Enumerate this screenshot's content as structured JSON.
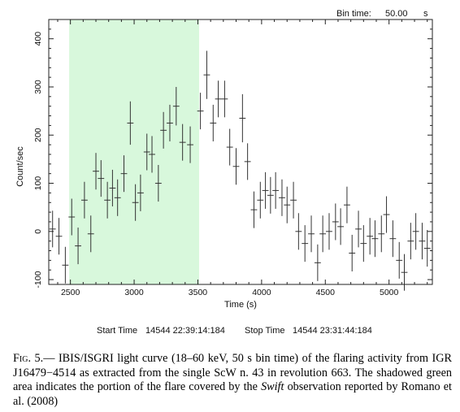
{
  "chart_data": {
    "type": "scatter",
    "title": "",
    "xlabel": "Time (s)",
    "ylabel": "Count/sec",
    "xlim": [
      2330,
      5340
    ],
    "ylim": [
      -110,
      440
    ],
    "xticks": [
      2500,
      3000,
      3500,
      4000,
      4500,
      5000
    ],
    "yticks": [
      -100,
      0,
      100,
      200,
      300,
      400
    ],
    "grid": false,
    "legend": "none",
    "bin_time_label": "Bin time:",
    "bin_time_value": "50.00",
    "bin_time_unit": "s",
    "start_label": "Start Time",
    "start_value": "14544 22:39:14:184",
    "stop_label": "Stop Time",
    "stop_value": "14544 23:31:44:184",
    "shaded_region": {
      "x0": 2490,
      "x1": 3510,
      "color": "#d8f8dc"
    },
    "points": [
      {
        "x": 2360,
        "y": 5,
        "err": 38
      },
      {
        "x": 2410,
        "y": -10,
        "err": 38
      },
      {
        "x": 2460,
        "y": -70,
        "err": 38
      },
      {
        "x": 2510,
        "y": 30,
        "err": 38
      },
      {
        "x": 2560,
        "y": -30,
        "err": 38
      },
      {
        "x": 2610,
        "y": 65,
        "err": 38
      },
      {
        "x": 2660,
        "y": -5,
        "err": 38
      },
      {
        "x": 2700,
        "y": 125,
        "err": 38
      },
      {
        "x": 2740,
        "y": 110,
        "err": 38
      },
      {
        "x": 2790,
        "y": 65,
        "err": 38
      },
      {
        "x": 2830,
        "y": 90,
        "err": 38
      },
      {
        "x": 2870,
        "y": 70,
        "err": 38
      },
      {
        "x": 2920,
        "y": 120,
        "err": 38
      },
      {
        "x": 2970,
        "y": 225,
        "err": 45
      },
      {
        "x": 3010,
        "y": 60,
        "err": 38
      },
      {
        "x": 3050,
        "y": 80,
        "err": 38
      },
      {
        "x": 3100,
        "y": 165,
        "err": 38
      },
      {
        "x": 3140,
        "y": 160,
        "err": 38
      },
      {
        "x": 3190,
        "y": 100,
        "err": 38
      },
      {
        "x": 3230,
        "y": 210,
        "err": 38
      },
      {
        "x": 3280,
        "y": 225,
        "err": 38
      },
      {
        "x": 3330,
        "y": 260,
        "err": 40
      },
      {
        "x": 3380,
        "y": 185,
        "err": 38
      },
      {
        "x": 3440,
        "y": 180,
        "err": 38
      },
      {
        "x": 3520,
        "y": 250,
        "err": 38
      },
      {
        "x": 3570,
        "y": 325,
        "err": 50
      },
      {
        "x": 3620,
        "y": 225,
        "err": 38
      },
      {
        "x": 3660,
        "y": 275,
        "err": 38
      },
      {
        "x": 3710,
        "y": 275,
        "err": 38
      },
      {
        "x": 3750,
        "y": 175,
        "err": 38
      },
      {
        "x": 3800,
        "y": 135,
        "err": 38
      },
      {
        "x": 3850,
        "y": 235,
        "err": 50
      },
      {
        "x": 3890,
        "y": 145,
        "err": 38
      },
      {
        "x": 3940,
        "y": 45,
        "err": 38
      },
      {
        "x": 3990,
        "y": 65,
        "err": 38
      },
      {
        "x": 4030,
        "y": 85,
        "err": 38
      },
      {
        "x": 4070,
        "y": 75,
        "err": 38
      },
      {
        "x": 4110,
        "y": 85,
        "err": 38
      },
      {
        "x": 4160,
        "y": 70,
        "err": 38
      },
      {
        "x": 4200,
        "y": 55,
        "err": 38
      },
      {
        "x": 4250,
        "y": 65,
        "err": 38
      },
      {
        "x": 4290,
        "y": 0,
        "err": 38
      },
      {
        "x": 4340,
        "y": -25,
        "err": 38
      },
      {
        "x": 4390,
        "y": -5,
        "err": 38
      },
      {
        "x": 4440,
        "y": -65,
        "err": 38
      },
      {
        "x": 4480,
        "y": -5,
        "err": 38
      },
      {
        "x": 4530,
        "y": 0,
        "err": 38
      },
      {
        "x": 4580,
        "y": 20,
        "err": 38
      },
      {
        "x": 4620,
        "y": 10,
        "err": 38
      },
      {
        "x": 4670,
        "y": 55,
        "err": 38
      },
      {
        "x": 4710,
        "y": -45,
        "err": 38
      },
      {
        "x": 4760,
        "y": 5,
        "err": 38
      },
      {
        "x": 4800,
        "y": -25,
        "err": 38
      },
      {
        "x": 4850,
        "y": -10,
        "err": 38
      },
      {
        "x": 4890,
        "y": -15,
        "err": 38
      },
      {
        "x": 4940,
        "y": -5,
        "err": 38
      },
      {
        "x": 4980,
        "y": 35,
        "err": 38
      },
      {
        "x": 5030,
        "y": -15,
        "err": 38
      },
      {
        "x": 5080,
        "y": -60,
        "err": 38
      },
      {
        "x": 5120,
        "y": -85,
        "err": 38
      },
      {
        "x": 5170,
        "y": -20,
        "err": 38
      },
      {
        "x": 5210,
        "y": 0,
        "err": 38
      },
      {
        "x": 5260,
        "y": -20,
        "err": 38
      },
      {
        "x": 5300,
        "y": -35,
        "err": 38
      }
    ]
  },
  "caption": {
    "label": "Fig. 5.—",
    "text_before": " IBIS/ISGRI light curve (18–60 keV, 50 s bin time) of the flaring activity from IGR J16479−4514 as extracted from the single ScW n. 43 in revolution 663.  The shadowed green area indicates the portion of the flare covered by the ",
    "mission": "Swift",
    "text_after": " observation reported by Romano et al. (2008)"
  }
}
